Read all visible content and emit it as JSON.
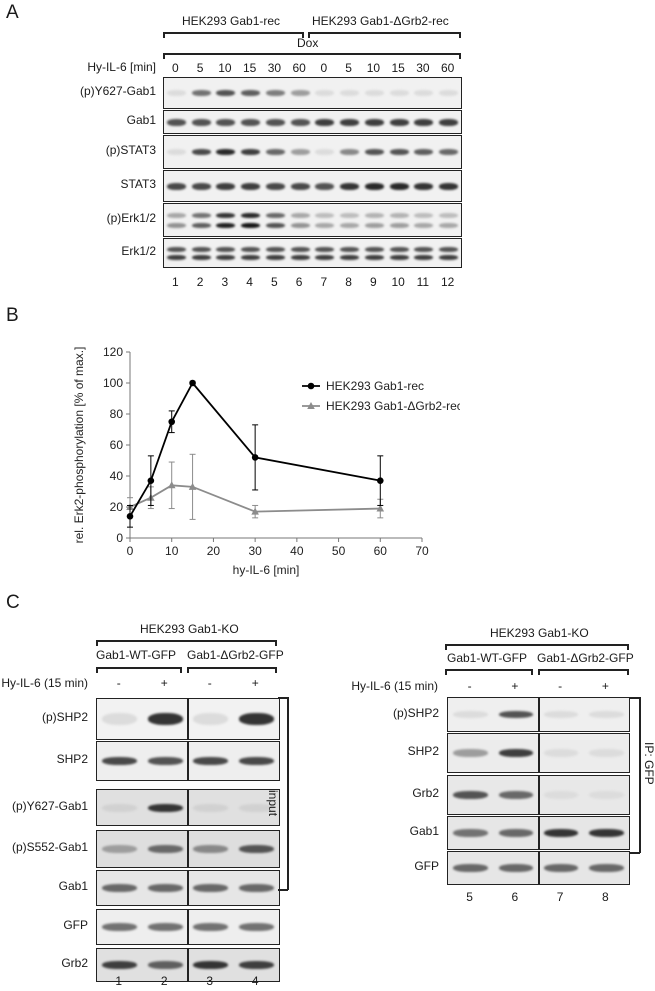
{
  "panelA": {
    "letter": "A",
    "group1": "HEK293 Gab1-rec",
    "group2": "HEK293 Gab1-ΔGrb2-rec",
    "dox": "Dox",
    "treatment_label": "Hy-IL-6 [min]",
    "times": [
      "0",
      "5",
      "10",
      "15",
      "30",
      "60",
      "0",
      "5",
      "10",
      "15",
      "30",
      "60"
    ],
    "blots": [
      "(p)Y627-Gab1",
      "Gab1",
      "(p)STAT3",
      "STAT3",
      "(p)Erk1/2",
      "Erk1/2"
    ],
    "lanes": [
      "1",
      "2",
      "3",
      "4",
      "5",
      "6",
      "7",
      "8",
      "9",
      "10",
      "11",
      "12"
    ]
  },
  "panelB": {
    "letter": "B",
    "chart_data": {
      "type": "line",
      "ylabel": "rel. Erk2-phosphorylation [% of max.]",
      "xlabel": "hy-IL-6 [min]",
      "xlim": [
        0,
        70
      ],
      "ylim": [
        0,
        120
      ],
      "xticks": [
        "0",
        "10",
        "20",
        "30",
        "40",
        "50",
        "60",
        "70"
      ],
      "yticks": [
        "0",
        "20",
        "40",
        "60",
        "80",
        "100",
        "120"
      ],
      "legend_position": "top-right",
      "x": [
        0,
        5,
        10,
        15,
        30,
        60
      ],
      "series": [
        {
          "name": "HEK293 Gab1-rec",
          "color": "#000000",
          "marker": "circle",
          "values": [
            14,
            37,
            75,
            100,
            52,
            37
          ],
          "err": [
            7,
            16,
            7,
            0,
            21,
            16
          ]
        },
        {
          "name": "HEK293 Gab1-ΔGrb2-rec",
          "color": "#8c8c8c",
          "marker": "triangle",
          "values": [
            20,
            26,
            34,
            33,
            17,
            19
          ],
          "err": [
            6,
            7,
            15,
            21,
            4,
            6
          ]
        }
      ]
    }
  },
  "panelC": {
    "letter": "C",
    "left": {
      "header": "HEK293 Gab1-KO",
      "col1": "Gab1-WT-GFP",
      "col2": "Gab1-ΔGrb2-GFP",
      "treatment": "Hy-IL-6 (15 min)",
      "signs": [
        "-",
        "+",
        "-",
        "+"
      ],
      "blots": [
        "(p)SHP2",
        "SHP2",
        "(p)Y627-Gab1",
        "(p)S552-Gab1",
        "Gab1",
        "GFP",
        "Grb2"
      ],
      "lanes": [
        "1",
        "2",
        "3",
        "4"
      ],
      "side_label": "input"
    },
    "right": {
      "header": "HEK293 Gab1-KO",
      "col1": "Gab1-WT-GFP",
      "col2": "Gab1-ΔGrb2-GFP",
      "treatment": "Hy-IL-6 (15 min)",
      "signs": [
        "-",
        "+",
        "-",
        "+"
      ],
      "blots": [
        "(p)SHP2",
        "SHP2",
        "Grb2",
        "Gab1",
        "GFP"
      ],
      "lanes": [
        "5",
        "6",
        "7",
        "8"
      ],
      "side_label": "IP: GFP"
    }
  }
}
